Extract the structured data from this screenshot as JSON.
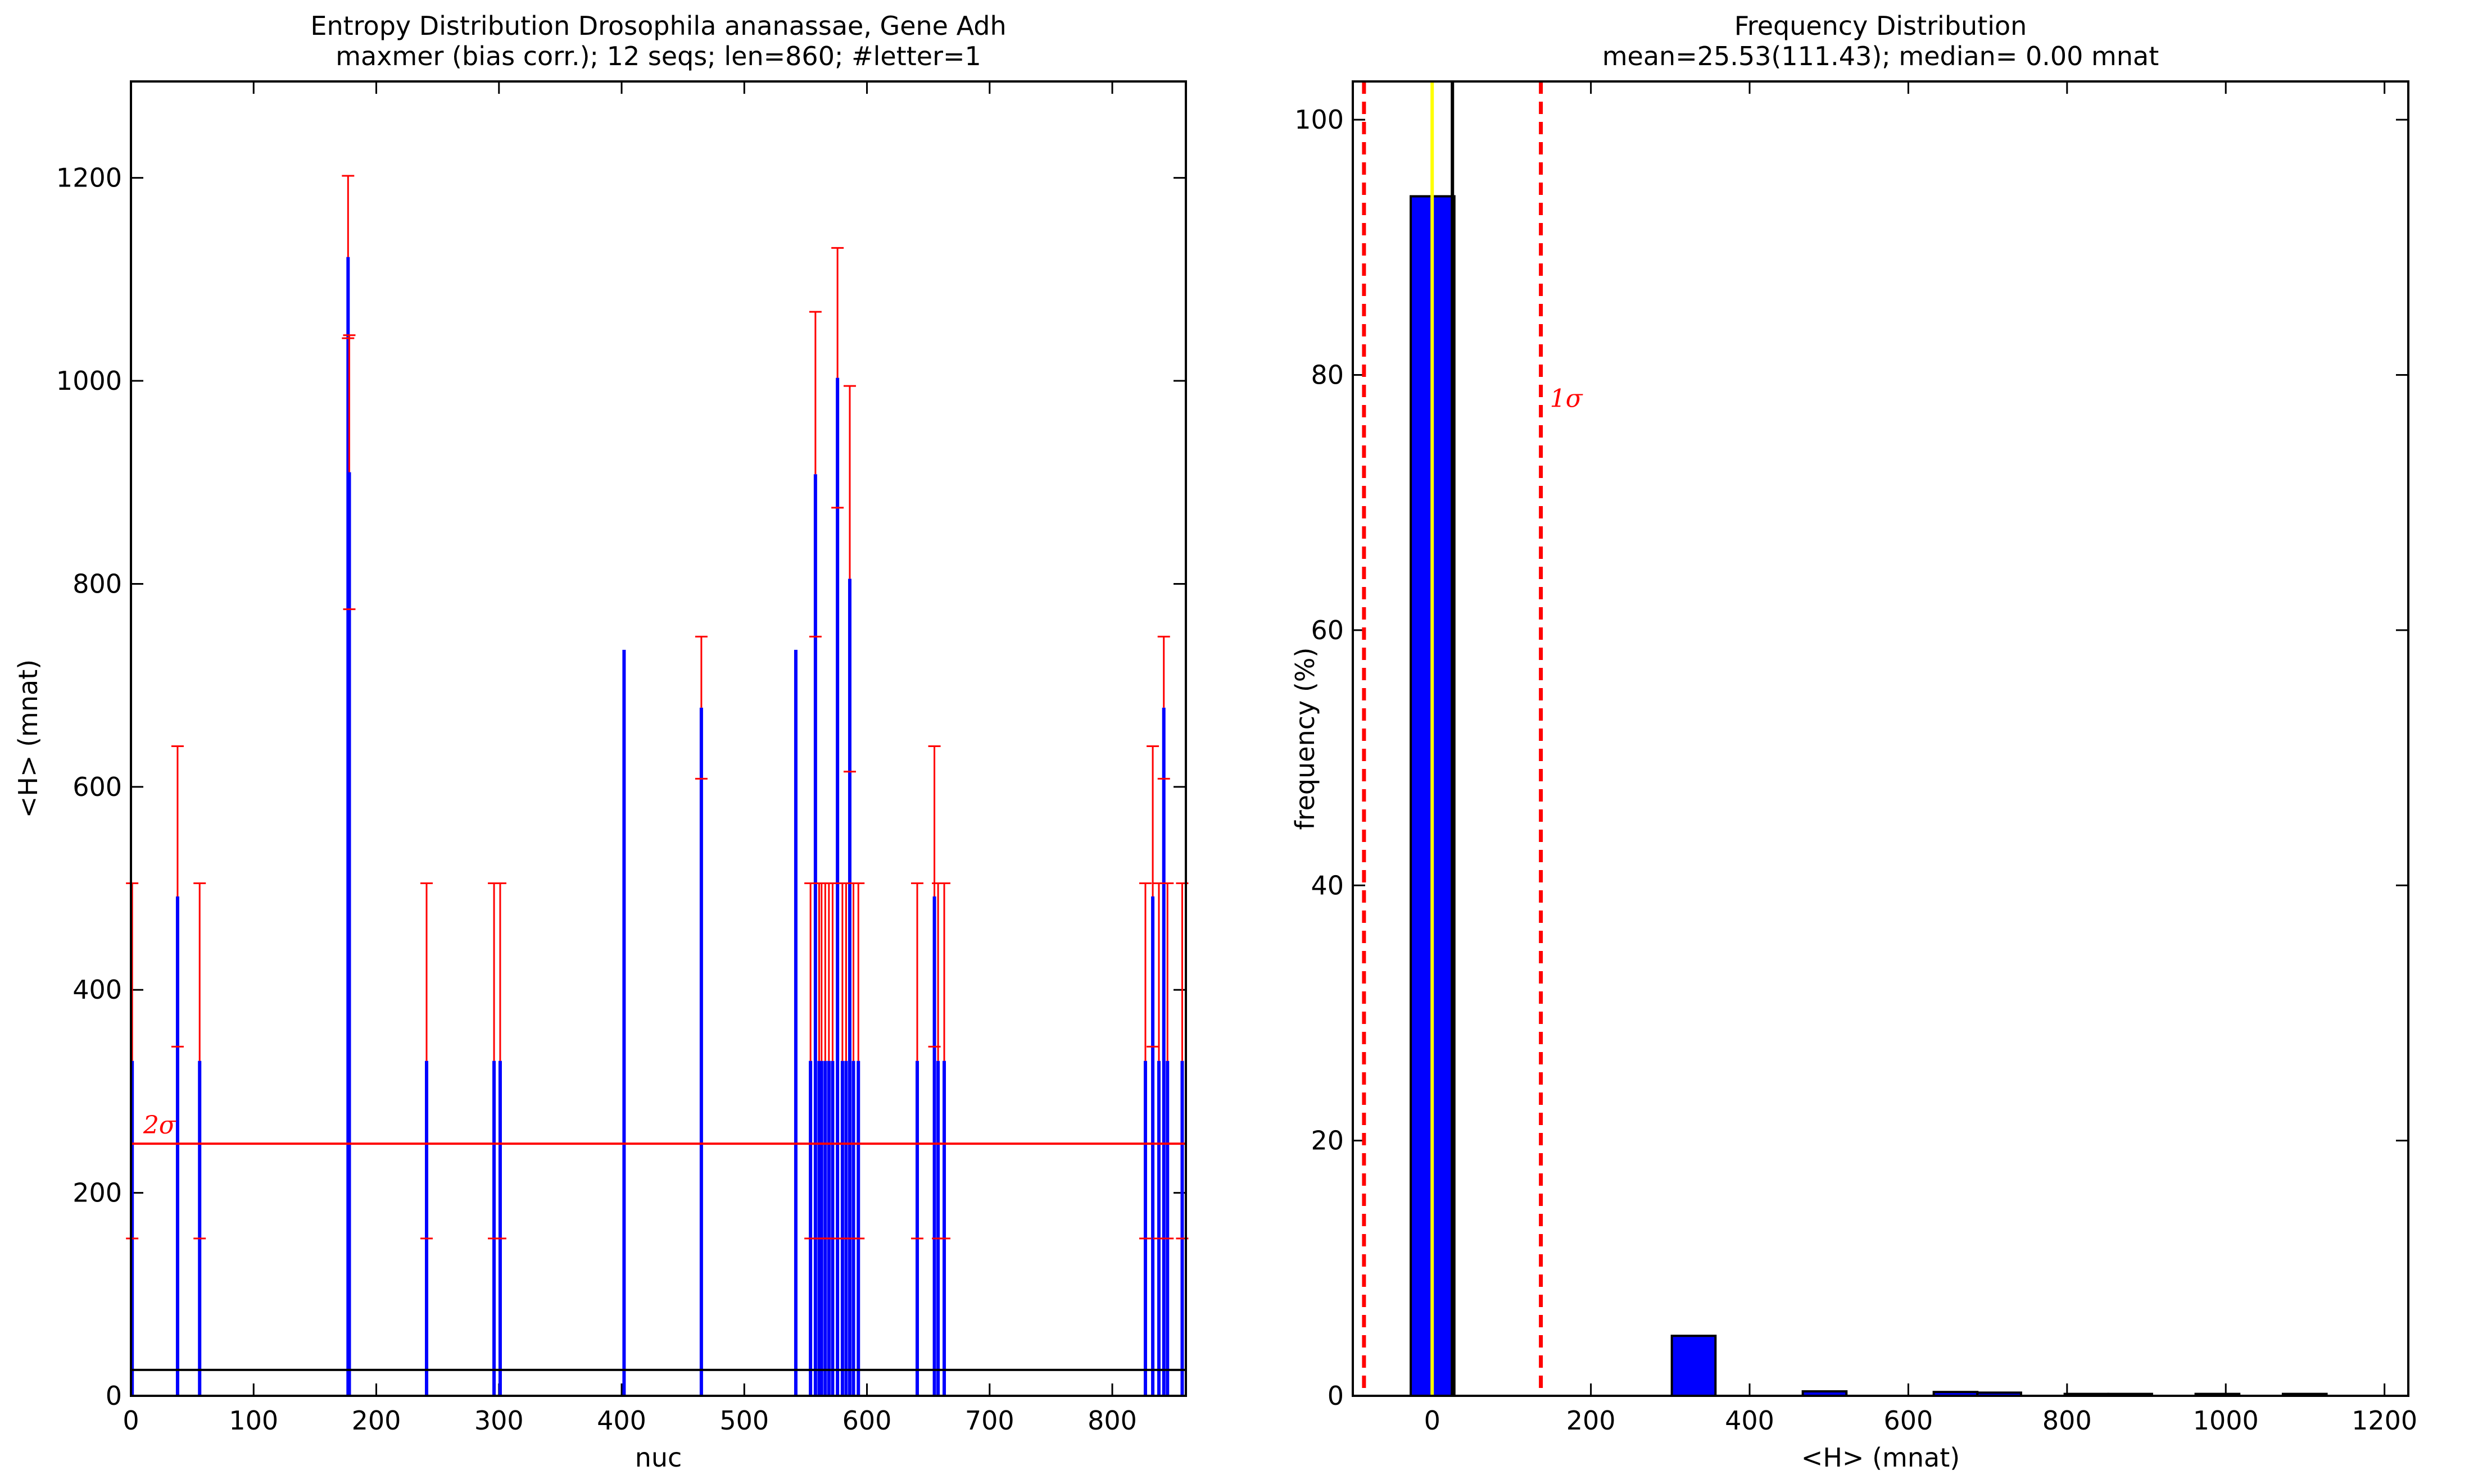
{
  "chart_data": [
    {
      "type": "bar",
      "title": "Entropy Distribution Drosophila ananassae, Gene Adh",
      "subtitle": "maxmer (bias corr.); 12 seqs; len=860; #letter=1",
      "xlabel": "nuc",
      "ylabel": "<H> (mnat)",
      "xlim": [
        0,
        860
      ],
      "ylim": [
        0,
        1295
      ],
      "xticks": [
        0,
        100,
        200,
        300,
        400,
        500,
        600,
        700,
        800
      ],
      "yticks": [
        0,
        200,
        400,
        600,
        800,
        1000,
        1200
      ],
      "grid": false,
      "mean_line": 25.53,
      "two_sigma_line": 248.4,
      "two_sigma_label": "2σ",
      "colors": {
        "value": "#0000ff",
        "error": "#ff0000",
        "mean": "#000000",
        "sigma": "#ff0000"
      },
      "series": [
        {
          "x": [
            1,
            38,
            56,
            177,
            178,
            241,
            296,
            301,
            402,
            465,
            542,
            554,
            558,
            561,
            563,
            566,
            569,
            572,
            576,
            580,
            583,
            586,
            589,
            593,
            641,
            655,
            658,
            663,
            827,
            833,
            838,
            842,
            845,
            857
          ],
          "values": [
            330,
            492,
            330,
            1122,
            910,
            330,
            330,
            330,
            735,
            678,
            735,
            330,
            908,
            330,
            330,
            330,
            330,
            330,
            1003,
            330,
            330,
            805,
            330,
            330,
            330,
            492,
            330,
            330,
            330,
            492,
            330,
            678,
            330,
            330
          ],
          "err": [
            175,
            148,
            175,
            80,
            135,
            175,
            175,
            175,
            0,
            70,
            0,
            175,
            160,
            175,
            175,
            175,
            175,
            175,
            128,
            175,
            175,
            190,
            175,
            175,
            175,
            148,
            175,
            175,
            175,
            148,
            175,
            70,
            175,
            175
          ]
        }
      ]
    },
    {
      "type": "bar",
      "title": "Frequency Distribution",
      "subtitle": "mean=25.53(111.43); median= 0.00 mnat",
      "xlabel": "<H> (mnat)",
      "ylabel": "frequency (%)",
      "xlim": [
        -100,
        1230
      ],
      "ylim": [
        0,
        103
      ],
      "xticks": [
        0,
        200,
        400,
        600,
        800,
        1000,
        1200
      ],
      "yticks": [
        0,
        20,
        40,
        60,
        80,
        100
      ],
      "grid": false,
      "bin_width": 55,
      "bin_left": [
        -27,
        302,
        467,
        632,
        687,
        797,
        852,
        962,
        1072
      ],
      "values": [
        94.0,
        4.7,
        0.35,
        0.3,
        0.25,
        0.15,
        0.15,
        0.15,
        0.15
      ],
      "median_line": 0.0,
      "mean_line": 25.53,
      "sigma_lines": [
        -85.9,
        136.96
      ],
      "sigma_label": "1σ",
      "colors": {
        "bar": "#0000ff",
        "median": "#ffff00",
        "mean": "#000000",
        "sigma": "#ff0000"
      }
    }
  ]
}
